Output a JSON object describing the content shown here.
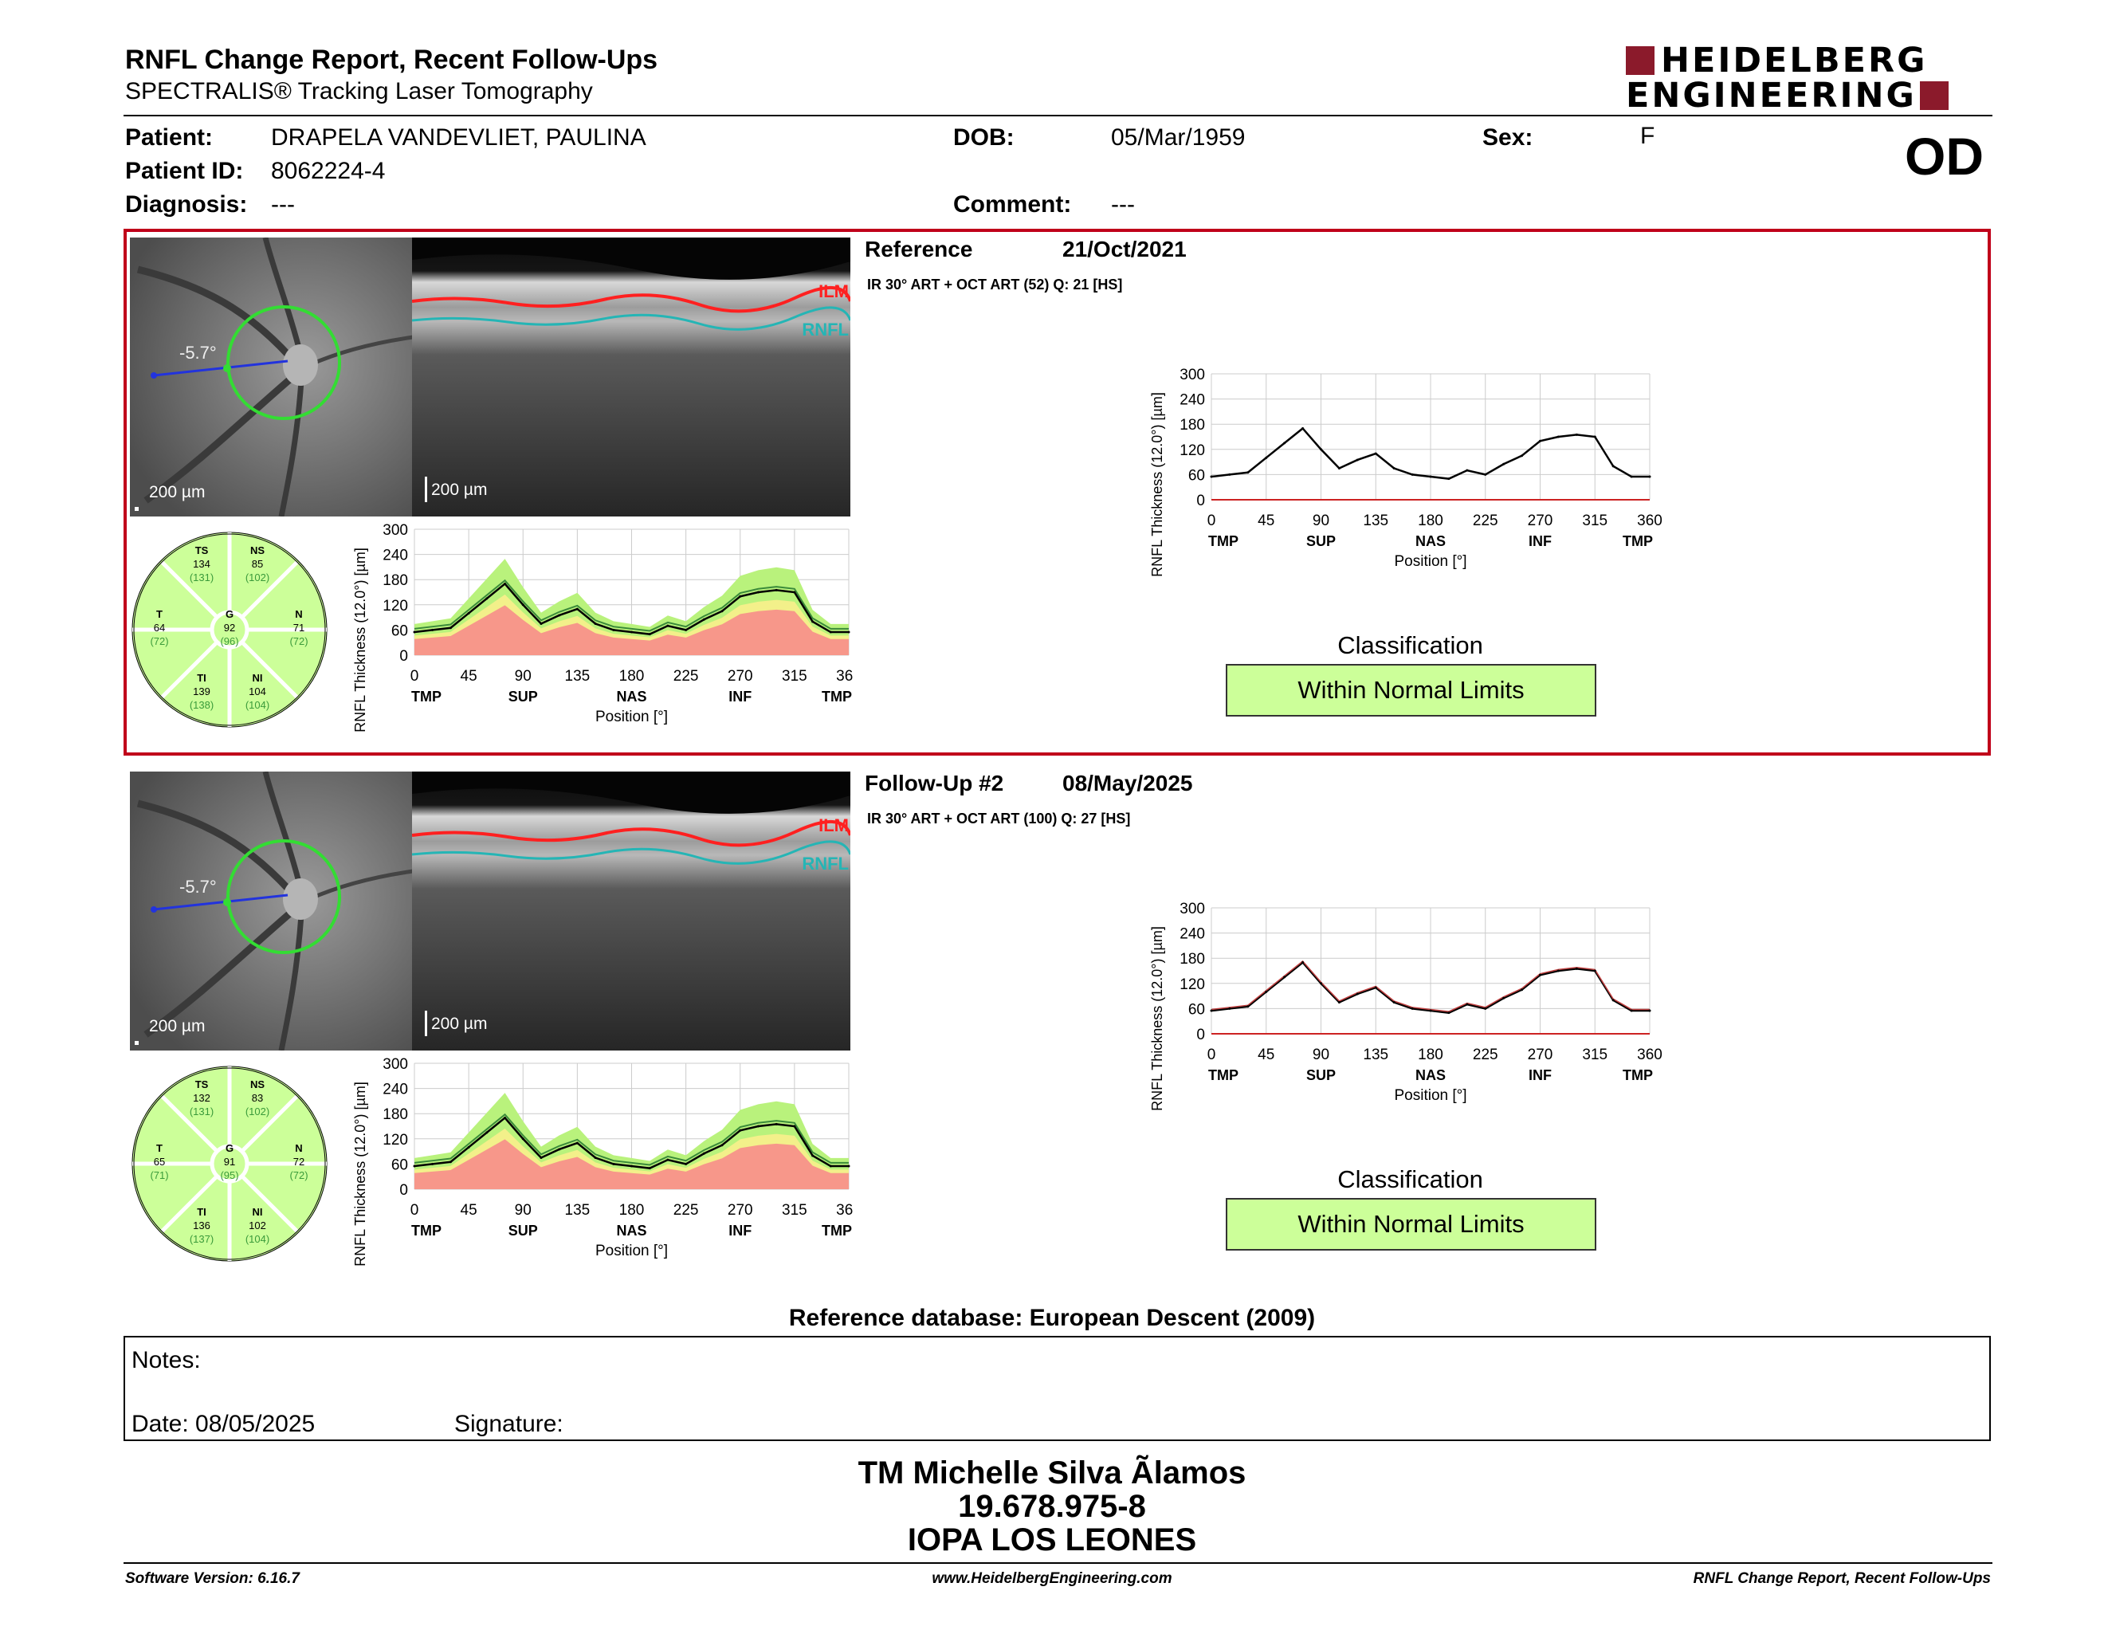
{
  "header": {
    "title": "RNFL Change Report, Recent Follow-Ups",
    "subtitle": "SPECTRALIS® Tracking Laser Tomography",
    "logo_line1": "HEIDELBERG",
    "logo_line2": "ENGINEERING",
    "eye": "OD",
    "brand_color": "#8b1a2b"
  },
  "patient": {
    "patient_label": "Patient:",
    "patient_value": "DRAPELA VANDEVLIET, PAULINA",
    "id_label": "Patient ID:",
    "id_value": "8062224-4",
    "diagnosis_label": "Diagnosis:",
    "diagnosis_value": "---",
    "dob_label": "DOB:",
    "dob_value": "05/Mar/1959",
    "comment_label": "Comment:",
    "comment_value": "---",
    "sex_label": "Sex:",
    "sex_value": "F"
  },
  "sections": [
    {
      "heading": "Reference",
      "date": "21/Oct/2021",
      "scan_info": "IR 30° ART + OCT ART (52) Q: 21 [HS]",
      "angle": "-5.7°",
      "scale_left": "200 µm",
      "scale_right": "200 µm",
      "ilm": "ILM",
      "rnfl": "RNFL",
      "classification_title": "Classification",
      "classification_value": "Within Normal Limits",
      "sectors": {
        "TS": {
          "label": "TS",
          "value": "134",
          "ref": "(131)"
        },
        "NS": {
          "label": "NS",
          "value": "85",
          "ref": "(102)"
        },
        "T": {
          "label": "T",
          "value": "64",
          "ref": "(72)"
        },
        "G": {
          "label": "G",
          "value": "92",
          "ref": "(96)"
        },
        "N": {
          "label": "N",
          "value": "71",
          "ref": "(72)"
        },
        "TI": {
          "label": "TI",
          "value": "139",
          "ref": "(138)"
        },
        "NI": {
          "label": "NI",
          "value": "104",
          "ref": "(104)"
        }
      }
    },
    {
      "heading": "Follow-Up #2",
      "date": "08/May/2025",
      "scan_info": "IR 30° ART + OCT ART (100) Q: 27 [HS]",
      "angle": "-5.7°",
      "scale_left": "200 µm",
      "scale_right": "200 µm",
      "ilm": "ILM",
      "rnfl": "RNFL",
      "classification_title": "Classification",
      "classification_value": "Within Normal Limits",
      "sectors": {
        "TS": {
          "label": "TS",
          "value": "132",
          "ref": "(131)"
        },
        "NS": {
          "label": "NS",
          "value": "83",
          "ref": "(102)"
        },
        "T": {
          "label": "T",
          "value": "65",
          "ref": "(71)"
        },
        "G": {
          "label": "G",
          "value": "91",
          "ref": "(95)"
        },
        "N": {
          "label": "N",
          "value": "72",
          "ref": "(72)"
        },
        "TI": {
          "label": "TI",
          "value": "136",
          "ref": "(137)"
        },
        "NI": {
          "label": "NI",
          "value": "102",
          "ref": "(104)"
        }
      }
    }
  ],
  "chart_data": [
    {
      "type": "line",
      "ylabel": "RNFL Thickness (12.0°) [µm]",
      "xlabel": "Position [°]",
      "ylim": [
        0,
        300
      ],
      "xlim": [
        0,
        360
      ],
      "yticks": [
        "0",
        "60",
        "120",
        "180",
        "240",
        "300"
      ],
      "xticks": [
        "0",
        "45",
        "90",
        "135",
        "180",
        "225",
        "270",
        "315",
        "360"
      ],
      "region_labels": [
        "TMP",
        "SUP",
        "NAS",
        "INF",
        "TMP"
      ],
      "x": [
        0,
        15,
        30,
        45,
        60,
        75,
        90,
        105,
        120,
        135,
        150,
        165,
        180,
        195,
        210,
        225,
        240,
        255,
        270,
        285,
        300,
        315,
        330,
        345,
        360
      ],
      "series": [
        {
          "values": [
            55,
            60,
            65,
            100,
            135,
            170,
            120,
            75,
            95,
            110,
            75,
            60,
            55,
            50,
            70,
            60,
            85,
            105,
            140,
            150,
            155,
            150,
            80,
            55,
            55
          ]
        }
      ]
    }
  ],
  "normative_bands": {
    "colors": {
      "green": "#b9f27c",
      "yellow": "#f3f08a",
      "red": "#f7978a",
      "line": "#000000",
      "ref_line": "#c04040"
    }
  },
  "reference_db": "Reference database: European Descent (2009)",
  "notes": {
    "notes_label": "Notes:",
    "date_label": "Date: 08/05/2025",
    "signature_label": "Signature:"
  },
  "signature_block": {
    "name": "TM Michelle Silva Ãlamos",
    "id": "19.678.975-8",
    "org": "IOPA LOS LEONES"
  },
  "footer": {
    "version": "Software Version: 6.16.7",
    "website": "www.HeidelbergEngineering.com",
    "report": "RNFL Change Report, Recent Follow-Ups"
  }
}
